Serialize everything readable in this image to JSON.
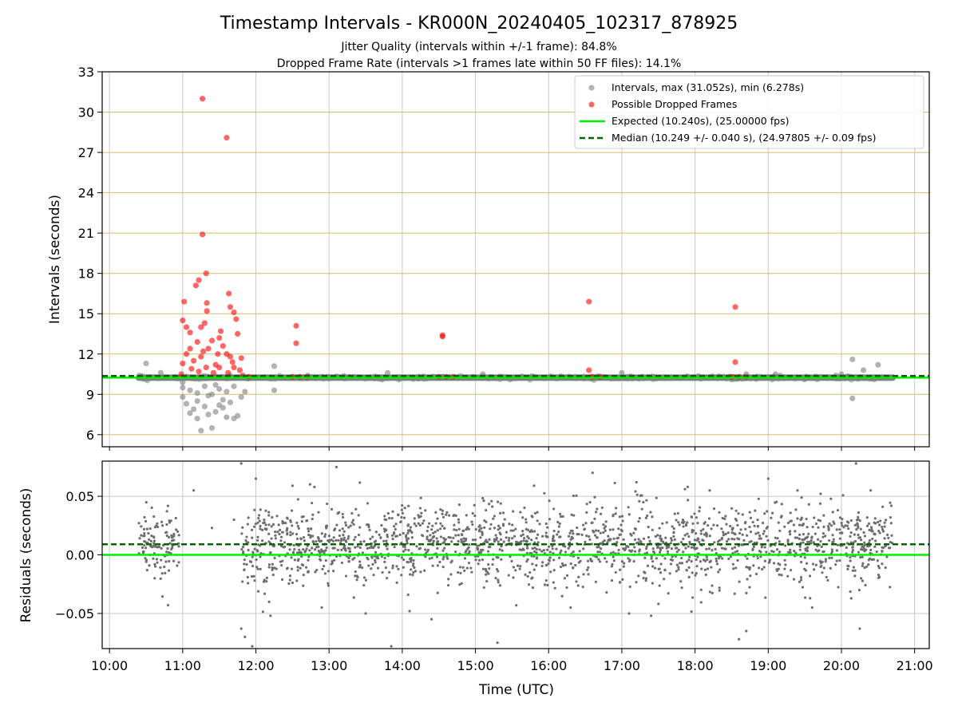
{
  "chart_data": [
    {
      "type": "scatter",
      "title": "Timestamp Intervals - KR000N_20240405_102317_878925",
      "subtitle_lines": [
        "Jitter Quality (intervals within +/-1 frame): 84.8%",
        "Dropped Frame Rate (intervals >1 frames late within 50 FF files): 14.1%"
      ],
      "ylabel": "Intervals (seconds)",
      "xlabel": "",
      "xlim": [
        9.9,
        21.2
      ],
      "ylim": [
        5.1,
        33
      ],
      "yticks": [
        6,
        9,
        12,
        15,
        18,
        21,
        24,
        27,
        30,
        33
      ],
      "ytick_labels": [
        "6",
        "9",
        "12",
        "15",
        "18",
        "21",
        "24",
        "27",
        "30",
        "33"
      ],
      "grid": "on",
      "legend_position": "top-right",
      "colors": {
        "intervals": "#808080",
        "dropped": "#ff0000",
        "expected": "#00ee00",
        "median": "#006400",
        "hgrid": "#d4bb6a",
        "vgrid": "#c8c8c8"
      },
      "series": [
        {
          "name": "Intervals, max (31.052s), min (6.278s)",
          "kind": "scatter",
          "band": {
            "x_start": 10.4,
            "x_end": 20.7,
            "y_center": 10.24,
            "spread": 0.06
          },
          "points": [
            [
              10.5,
              11.3
            ],
            [
              10.7,
              10.6
            ],
            [
              10.9,
              10.3
            ],
            [
              11.0,
              9.5
            ],
            [
              11.0,
              8.8
            ],
            [
              11.05,
              8.3
            ],
            [
              11.1,
              7.6
            ],
            [
              11.15,
              7.9
            ],
            [
              11.2,
              7.2
            ],
            [
              11.25,
              6.3
            ],
            [
              11.3,
              8.1
            ],
            [
              11.35,
              7.5
            ],
            [
              11.4,
              6.5
            ],
            [
              11.45,
              7.7
            ],
            [
              11.5,
              8.2
            ],
            [
              11.55,
              8.6
            ],
            [
              11.6,
              7.3
            ],
            [
              11.7,
              7.2
            ],
            [
              11.75,
              7.4
            ],
            [
              11.8,
              8.8
            ],
            [
              11.1,
              9.3
            ],
            [
              11.2,
              9.1
            ],
            [
              11.3,
              9.6
            ],
            [
              11.4,
              9.0
            ],
            [
              11.5,
              9.4
            ],
            [
              11.6,
              9.2
            ],
            [
              11.7,
              9.6
            ],
            [
              11.2,
              8.5
            ],
            [
              11.35,
              8.9
            ],
            [
              11.55,
              8.0
            ],
            [
              11.65,
              8.4
            ],
            [
              11.0,
              9.9
            ],
            [
              11.45,
              9.7
            ],
            [
              11.85,
              9.2
            ],
            [
              12.25,
              11.1
            ],
            [
              12.25,
              9.3
            ],
            [
              20.15,
              11.6
            ],
            [
              20.15,
              8.7
            ],
            [
              20.3,
              10.8
            ],
            [
              20.5,
              11.2
            ],
            [
              20.0,
              10.5
            ],
            [
              13.8,
              10.6
            ],
            [
              15.1,
              10.5
            ],
            [
              17.0,
              10.6
            ],
            [
              18.7,
              10.5
            ],
            [
              19.1,
              10.5
            ]
          ]
        },
        {
          "name": "Possible Dropped Frames",
          "kind": "scatter",
          "points": [
            [
              11.27,
              31.0
            ],
            [
              11.6,
              28.1
            ],
            [
              11.27,
              20.9
            ],
            [
              11.32,
              18.0
            ],
            [
              11.22,
              17.5
            ],
            [
              11.18,
              17.1
            ],
            [
              11.63,
              16.5
            ],
            [
              11.65,
              15.5
            ],
            [
              11.7,
              15.1
            ],
            [
              11.02,
              15.9
            ],
            [
              11.33,
              15.8
            ],
            [
              11.33,
              15.2
            ],
            [
              11.0,
              14.5
            ],
            [
              11.05,
              14.0
            ],
            [
              11.3,
              14.3
            ],
            [
              11.4,
              13.0
            ],
            [
              11.73,
              14.6
            ],
            [
              11.75,
              13.5
            ],
            [
              11.1,
              13.6
            ],
            [
              11.2,
              12.9
            ],
            [
              11.5,
              13.2
            ],
            [
              11.55,
              12.6
            ],
            [
              11.6,
              12.0
            ],
            [
              11.65,
              11.8
            ],
            [
              11.8,
              11.7
            ],
            [
              11.05,
              12.0
            ],
            [
              11.15,
              11.5
            ],
            [
              11.25,
              11.8
            ],
            [
              11.35,
              12.4
            ],
            [
              11.45,
              11.2
            ],
            [
              11.5,
              11.0
            ],
            [
              11.7,
              11.0
            ],
            [
              11.78,
              10.8
            ],
            [
              11.0,
              11.3
            ],
            [
              11.12,
              10.9
            ],
            [
              11.22,
              10.7
            ],
            [
              11.32,
              11.0
            ],
            [
              11.42,
              10.6
            ],
            [
              11.62,
              10.6
            ],
            [
              11.82,
              10.4
            ],
            [
              11.9,
              10.3
            ],
            [
              10.98,
              10.5
            ],
            [
              11.1,
              12.4
            ],
            [
              11.28,
              12.2
            ],
            [
              11.48,
              12.0
            ],
            [
              11.68,
              11.4
            ],
            [
              11.52,
              13.7
            ],
            [
              11.25,
              14.0
            ],
            [
              12.55,
              14.1
            ],
            [
              12.55,
              12.8
            ],
            [
              12.5,
              10.3
            ],
            [
              12.6,
              10.3
            ],
            [
              12.7,
              10.3
            ],
            [
              14.55,
              13.4
            ],
            [
              14.55,
              13.3
            ],
            [
              14.5,
              10.3
            ],
            [
              14.6,
              10.3
            ],
            [
              14.7,
              10.3
            ],
            [
              16.55,
              15.9
            ],
            [
              16.55,
              10.8
            ],
            [
              16.6,
              10.3
            ],
            [
              16.7,
              10.3
            ],
            [
              18.55,
              15.5
            ],
            [
              18.55,
              11.4
            ],
            [
              18.5,
              10.3
            ],
            [
              18.6,
              10.3
            ],
            [
              18.7,
              10.3
            ]
          ]
        },
        {
          "name": "Expected (10.240s), (25.00000 fps)",
          "kind": "hline",
          "y": 10.24
        },
        {
          "name": "Median (10.249 +/- 0.040 s), (24.97805 +/- 0.09 fps)",
          "kind": "hline-dashed",
          "y": 10.249
        }
      ]
    },
    {
      "type": "scatter",
      "title": "",
      "xlabel": "Time (UTC)",
      "ylabel": "Residuals (seconds)",
      "xlim": [
        9.9,
        21.2
      ],
      "ylim": [
        -0.08,
        0.08
      ],
      "yticks": [
        -0.05,
        0.0,
        0.05
      ],
      "ytick_labels": [
        "−0.05",
        "0.00",
        "0.05"
      ],
      "xticks": [
        10,
        11,
        12,
        13,
        14,
        15,
        16,
        17,
        18,
        19,
        20,
        21
      ],
      "xtick_labels": [
        "10:00",
        "11:00",
        "12:00",
        "13:00",
        "14:00",
        "15:00",
        "16:00",
        "17:00",
        "18:00",
        "19:00",
        "20:00",
        "21:00"
      ],
      "grid": "on",
      "series": [
        {
          "name": "",
          "kind": "scatter",
          "segments": [
            {
              "x_start": 10.4,
              "x_end": 10.95,
              "center": 0.008,
              "spread": 0.018
            },
            {
              "x_start": 11.8,
              "x_end": 20.7,
              "center": 0.008,
              "spread": 0.02
            }
          ],
          "outliers": [
            [
              10.8,
              -0.043
            ],
            [
              11.15,
              0.055
            ],
            [
              11.4,
              0.023
            ],
            [
              11.7,
              0.03
            ],
            [
              11.8,
              0.078
            ],
            [
              11.8,
              -0.063
            ],
            [
              11.85,
              -0.07
            ],
            [
              11.95,
              -0.078
            ],
            [
              12.0,
              0.065
            ],
            [
              12.2,
              -0.052
            ],
            [
              12.5,
              0.059
            ],
            [
              12.8,
              0.058
            ],
            [
              12.9,
              -0.045
            ],
            [
              13.1,
              0.075
            ],
            [
              13.5,
              -0.05
            ],
            [
              13.85,
              -0.078
            ],
            [
              14.1,
              -0.048
            ],
            [
              14.4,
              -0.055
            ],
            [
              15.3,
              -0.075
            ],
            [
              15.8,
              0.059
            ],
            [
              16.3,
              -0.045
            ],
            [
              16.6,
              0.07
            ],
            [
              17.1,
              -0.05
            ],
            [
              17.2,
              0.062
            ],
            [
              17.4,
              -0.052
            ],
            [
              17.9,
              0.058
            ],
            [
              18.2,
              0.055
            ],
            [
              18.6,
              -0.072
            ],
            [
              18.7,
              -0.065
            ],
            [
              19.0,
              0.065
            ],
            [
              19.4,
              0.055
            ],
            [
              19.6,
              -0.045
            ],
            [
              20.2,
              0.078
            ],
            [
              20.25,
              -0.063
            ],
            [
              20.4,
              0.055
            ]
          ]
        },
        {
          "name": "",
          "kind": "hline",
          "y": 0.0
        },
        {
          "name": "",
          "kind": "hline-dashed",
          "y": 0.009
        }
      ]
    }
  ]
}
